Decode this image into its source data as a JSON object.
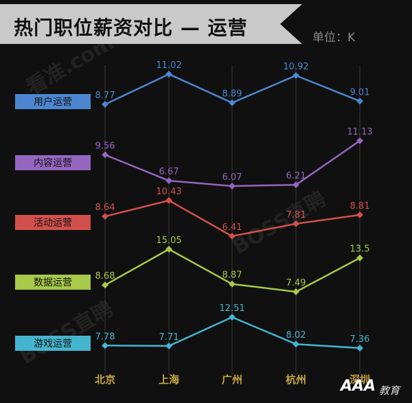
{
  "title": "热门职位薪资对比 — 运营",
  "unit": "单位：K",
  "watermark": [
    "看准.com",
    "BOSS直聘",
    "BOSS直聘"
  ],
  "logo": {
    "main": "AAA",
    "sub": "教育"
  },
  "colors": {
    "background": "#101010",
    "banner": "#c9c9c9",
    "axis_label": "#c8a640"
  },
  "chart_data": {
    "type": "line",
    "title": "热门职位薪资对比 — 运营",
    "unit": "K",
    "categories": [
      "北京",
      "上海",
      "广州",
      "杭州",
      "深圳"
    ],
    "series": [
      {
        "name": "用户运营",
        "color": "#4d86d0",
        "values": [
          8.77,
          11.02,
          8.89,
          10.92,
          9.01
        ]
      },
      {
        "name": "内容运营",
        "color": "#9466c0",
        "values": [
          9.56,
          6.67,
          6.07,
          6.21,
          11.13
        ]
      },
      {
        "name": "活动运营",
        "color": "#d2504c",
        "values": [
          8.64,
          10.43,
          6.41,
          7.81,
          8.81
        ]
      },
      {
        "name": "数据运营",
        "color": "#a8c94a",
        "values": [
          8.68,
          15.05,
          8.87,
          7.49,
          13.5
        ]
      },
      {
        "name": "游戏运营",
        "color": "#45b4cf",
        "values": [
          7.78,
          7.71,
          12.51,
          8.02,
          7.36
        ]
      }
    ],
    "grid": "vertical",
    "legend": "left"
  }
}
